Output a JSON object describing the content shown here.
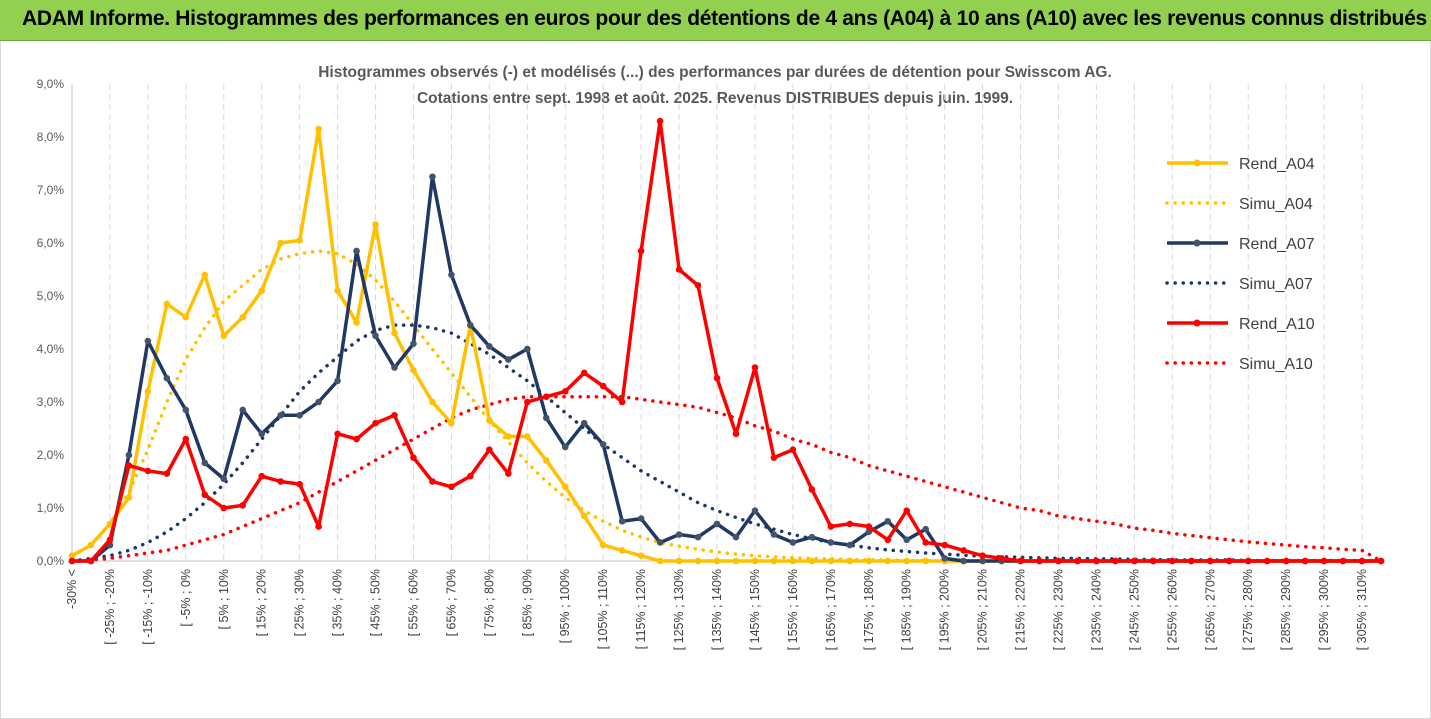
{
  "banner": {
    "title": "ADAM Informe. Histogrammes des performances en euros pour des détentions de 4 ans (A04) à 10 ans (A10) avec les revenus connus distribués"
  },
  "colors": {
    "banner_bg": "#92d050",
    "A04": "#ffc000",
    "A07": "#1f3864",
    "A10": "#ff0000",
    "grid": "#d9d9d9"
  },
  "chart_data": {
    "type": "line",
    "title": "Histogrammes observés (-) et modélisés (...) des performances par durées de détention pour Swisscom AG.",
    "subtitle": "Cotations entre sept. 1998 et août. 2025. Revenus DISTRIBUES depuis juin. 1999.",
    "xlabel": "",
    "ylabel": "",
    "ylim": [
      0,
      9
    ],
    "y_ticks": [
      "0,0%",
      "1,0%",
      "2,0%",
      "3,0%",
      "4,0%",
      "5,0%",
      "6,0%",
      "7,0%",
      "8,0%",
      "9,0%"
    ],
    "grid": "vertical",
    "legend_position": "right",
    "x_tick_labels": [
      "-30% <",
      "[ -25% ; -20%",
      "[ -15% ; -10%",
      "[ -5% ; 0%",
      "[ 5% ; 10%",
      "[ 15% ; 20%",
      "[ 25% ; 30%",
      "[ 35% ; 40%",
      "[ 45% ; 50%",
      "[ 55% ; 60%",
      "[ 65% ; 70%",
      "[ 75% ; 80%",
      "[ 85% ; 90%",
      "[ 95% ; 100%",
      "[ 105% ; 110%",
      "[ 115% ; 120%",
      "[ 125% ; 130%",
      "[ 135% ; 140%",
      "[ 145% ; 150%",
      "[ 155% ; 160%",
      "[ 165% ; 170%",
      "[ 175% ; 180%",
      "[ 185% ; 190%",
      "[ 195% ; 200%",
      "[ 205% ; 210%",
      "[ 215% ; 220%",
      "[ 225% ; 230%",
      "[ 235% ; 240%",
      "[ 245% ; 250%",
      "[ 255% ; 260%",
      "[ 265% ; 270%",
      "[ 275% ; 280%",
      "[ 285% ; 290%",
      "[ 295% ; 300%",
      "[ 305% ; 310%"
    ],
    "n_bins": 70,
    "series": [
      {
        "name": "Rend_A04",
        "style": "solid",
        "color": "#ffc000",
        "values": [
          0.1,
          0.3,
          0.7,
          1.2,
          3.2,
          4.85,
          4.6,
          5.4,
          4.25,
          4.6,
          5.1,
          6.0,
          6.05,
          8.15,
          5.1,
          4.5,
          6.35,
          4.3,
          3.6,
          3.0,
          2.6,
          4.45,
          2.65,
          2.35,
          2.35,
          1.9,
          1.4,
          0.85,
          0.3,
          0.2,
          0.1,
          0,
          0,
          0,
          0,
          0,
          0,
          0,
          0,
          0,
          0,
          0,
          0,
          0,
          0,
          0,
          0,
          0,
          0,
          0,
          0,
          0,
          0,
          0,
          0,
          0,
          0,
          0,
          0,
          0,
          0,
          0,
          0,
          0,
          0,
          0,
          0,
          0,
          0,
          0
        ]
      },
      {
        "name": "Simu_A04",
        "style": "dotted",
        "color": "#ffc000",
        "values": [
          0.1,
          0.3,
          0.7,
          1.3,
          2.1,
          3.0,
          3.8,
          4.4,
          4.9,
          5.2,
          5.5,
          5.7,
          5.8,
          5.85,
          5.8,
          5.6,
          5.3,
          4.9,
          4.45,
          4.0,
          3.55,
          3.1,
          2.65,
          2.25,
          1.85,
          1.5,
          1.2,
          0.95,
          0.75,
          0.58,
          0.45,
          0.35,
          0.28,
          0.22,
          0.17,
          0.13,
          0.1,
          0.08,
          0.06,
          0.05,
          0.04,
          0.03,
          0.02,
          0.02,
          0.01,
          0.01,
          0,
          0,
          0,
          0,
          0,
          0,
          0,
          0,
          0,
          0,
          0,
          0,
          0,
          0,
          0,
          0,
          0,
          0,
          0,
          0,
          0,
          0,
          0,
          0
        ]
      },
      {
        "name": "Rend_A07",
        "style": "solid",
        "color": "#1f3864",
        "values": [
          0,
          0,
          0.3,
          2.0,
          4.15,
          3.45,
          2.85,
          1.85,
          1.55,
          2.85,
          2.4,
          2.75,
          2.75,
          3.0,
          3.4,
          5.85,
          4.25,
          3.65,
          4.1,
          7.25,
          5.4,
          4.45,
          4.05,
          3.8,
          4.0,
          2.7,
          2.15,
          2.6,
          2.2,
          0.75,
          0.8,
          0.35,
          0.5,
          0.45,
          0.7,
          0.45,
          0.95,
          0.5,
          0.35,
          0.45,
          0.35,
          0.3,
          0.55,
          0.75,
          0.4,
          0.6,
          0.05,
          0.0,
          0,
          0,
          0,
          0,
          0,
          0,
          0,
          0,
          0,
          0,
          0,
          0,
          0,
          0,
          0,
          0,
          0,
          0,
          0,
          0,
          0,
          0
        ]
      },
      {
        "name": "Simu_A07",
        "style": "dotted",
        "color": "#1f3864",
        "values": [
          0,
          0.05,
          0.1,
          0.2,
          0.35,
          0.55,
          0.8,
          1.1,
          1.45,
          1.85,
          2.3,
          2.75,
          3.2,
          3.55,
          3.85,
          4.15,
          4.35,
          4.45,
          4.45,
          4.4,
          4.3,
          4.1,
          3.9,
          3.65,
          3.4,
          3.1,
          2.8,
          2.5,
          2.2,
          1.95,
          1.7,
          1.5,
          1.3,
          1.1,
          0.95,
          0.82,
          0.7,
          0.6,
          0.5,
          0.42,
          0.35,
          0.3,
          0.25,
          0.21,
          0.18,
          0.15,
          0.13,
          0.11,
          0.09,
          0.08,
          0.07,
          0.06,
          0.05,
          0.05,
          0.04,
          0.04,
          0.03,
          0.03,
          0.02,
          0.02,
          0.02,
          0.02,
          0.01,
          0.01,
          0.01,
          0.01,
          0.01,
          0.01,
          0.01,
          0.01
        ]
      },
      {
        "name": "Rend_A10",
        "style": "solid",
        "color": "#ff0000",
        "values": [
          0,
          0,
          0.4,
          1.8,
          1.7,
          1.65,
          2.3,
          1.25,
          1.0,
          1.05,
          1.6,
          1.5,
          1.45,
          0.65,
          2.4,
          2.3,
          2.6,
          2.75,
          1.95,
          1.5,
          1.4,
          1.6,
          2.1,
          1.65,
          3.0,
          3.1,
          3.2,
          3.55,
          3.3,
          3.0,
          5.85,
          8.3,
          5.5,
          5.2,
          3.45,
          2.4,
          3.65,
          1.95,
          2.1,
          1.35,
          0.65,
          0.7,
          0.65,
          0.4,
          0.95,
          0.35,
          0.3,
          0.2,
          0.1,
          0.05,
          0,
          0,
          0,
          0,
          0,
          0,
          0,
          0,
          0,
          0,
          0,
          0,
          0,
          0,
          0,
          0,
          0,
          0,
          0,
          0
        ]
      },
      {
        "name": "Simu_A10",
        "style": "dotted",
        "color": "#ff0000",
        "values": [
          0,
          0.02,
          0.05,
          0.1,
          0.15,
          0.2,
          0.3,
          0.4,
          0.5,
          0.65,
          0.8,
          0.95,
          1.1,
          1.3,
          1.5,
          1.7,
          1.9,
          2.1,
          2.3,
          2.5,
          2.7,
          2.85,
          2.95,
          3.05,
          3.1,
          3.1,
          3.1,
          3.1,
          3.1,
          3.1,
          3.05,
          3.0,
          2.95,
          2.9,
          2.8,
          2.7,
          2.55,
          2.45,
          2.3,
          2.2,
          2.05,
          1.95,
          1.8,
          1.7,
          1.6,
          1.5,
          1.4,
          1.3,
          1.2,
          1.1,
          1.0,
          0.95,
          0.85,
          0.8,
          0.75,
          0.7,
          0.62,
          0.58,
          0.52,
          0.48,
          0.44,
          0.4,
          0.36,
          0.33,
          0.3,
          0.27,
          0.25,
          0.22,
          0.2,
          0.0
        ]
      }
    ]
  }
}
